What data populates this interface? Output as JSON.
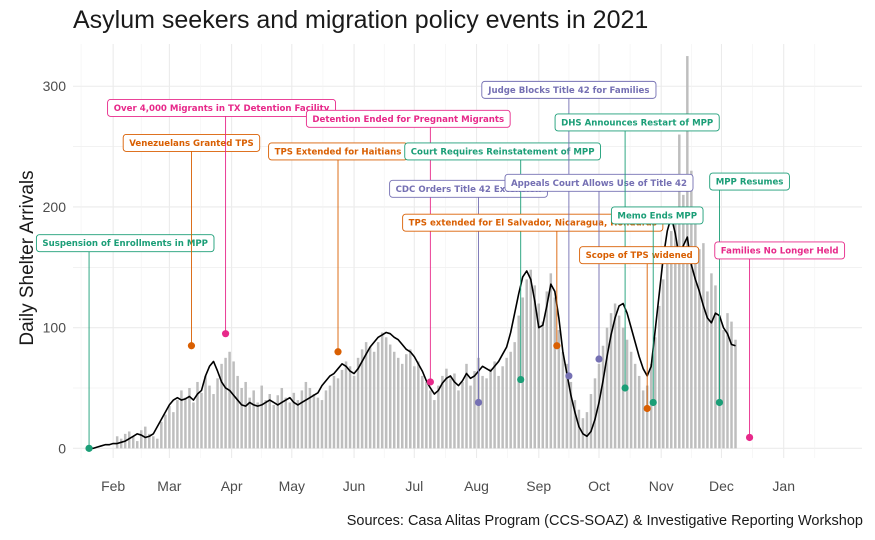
{
  "chart_data": {
    "type": "bar+line",
    "title": "Asylum seekers and migration policy events in 2021",
    "ylabel": "Daily Shelter Arrivals",
    "xlabel": "",
    "ylim": [
      -8,
      335
    ],
    "xlim": [
      "2021-01-12",
      "2022-02-09"
    ],
    "y_ticks": [
      0,
      100,
      200,
      300
    ],
    "x_ticks": [
      {
        "date": "2021-02-01",
        "label": "Feb"
      },
      {
        "date": "2021-03-01",
        "label": "Mar"
      },
      {
        "date": "2021-04-01",
        "label": "Apr"
      },
      {
        "date": "2021-05-01",
        "label": "May"
      },
      {
        "date": "2021-06-01",
        "label": "Jun"
      },
      {
        "date": "2021-07-01",
        "label": "Jul"
      },
      {
        "date": "2021-08-01",
        "label": "Aug"
      },
      {
        "date": "2021-09-01",
        "label": "Sep"
      },
      {
        "date": "2021-10-01",
        "label": "Oct"
      },
      {
        "date": "2021-11-01",
        "label": "Nov"
      },
      {
        "date": "2021-12-01",
        "label": "Dec"
      },
      {
        "date": "2022-01-01",
        "label": "Jan"
      }
    ],
    "grid": true,
    "bar_color": "#bebebe",
    "line_color": "#000000",
    "daily_arrivals_bars": {
      "start_date": "2021-01-20",
      "step_days": 2,
      "values": [
        0,
        0,
        0,
        0,
        0,
        0,
        0,
        10,
        8,
        12,
        14,
        10,
        6,
        15,
        18,
        12,
        10,
        8,
        22,
        28,
        35,
        30,
        40,
        48,
        42,
        50,
        38,
        55,
        46,
        60,
        52,
        45,
        58,
        70,
        75,
        80,
        72,
        60,
        50,
        55,
        42,
        48,
        38,
        52,
        40,
        45,
        36,
        44,
        50,
        42,
        38,
        46,
        40,
        48,
        55,
        50,
        45,
        42,
        40,
        48,
        52,
        60,
        58,
        65,
        72,
        68,
        60,
        75,
        82,
        88,
        84,
        80,
        88,
        96,
        92,
        86,
        80,
        75,
        70,
        78,
        82,
        68,
        72,
        60,
        55,
        48,
        40,
        52,
        60,
        66,
        58,
        62,
        48,
        55,
        70,
        52,
        64,
        75,
        60,
        58,
        66,
        72,
        60,
        68,
        75,
        80,
        88,
        110,
        125,
        140,
        148,
        135,
        120,
        105,
        130,
        145,
        125,
        98,
        80,
        70,
        55,
        40,
        32,
        25,
        30,
        45,
        58,
        70,
        85,
        100,
        112,
        120,
        110,
        100,
        90,
        80,
        70,
        60,
        48,
        52,
        70,
        92,
        118,
        140,
        160,
        180,
        195,
        260,
        210,
        325,
        230,
        190,
        165,
        170,
        130,
        145,
        135,
        110,
        98,
        112,
        105,
        90
      ]
    },
    "daily_arrivals_line": {
      "start_date": "2021-01-20",
      "step_days": 2,
      "values": [
        0,
        0,
        1,
        2,
        3,
        3,
        4,
        4,
        5,
        6,
        8,
        10,
        12,
        11,
        9,
        10,
        12,
        18,
        24,
        30,
        36,
        40,
        42,
        40,
        41,
        43,
        40,
        45,
        48,
        60,
        68,
        72,
        64,
        55,
        50,
        48,
        44,
        40,
        36,
        35,
        38,
        36,
        35,
        36,
        38,
        40,
        38,
        36,
        38,
        40,
        42,
        38,
        36,
        38,
        40,
        42,
        44,
        46,
        52,
        56,
        60,
        62,
        66,
        70,
        68,
        64,
        62,
        66,
        72,
        78,
        84,
        88,
        92,
        94,
        96,
        95,
        92,
        90,
        86,
        82,
        80,
        76,
        70,
        64,
        56,
        50,
        45,
        48,
        54,
        58,
        60,
        55,
        52,
        56,
        62,
        58,
        60,
        64,
        68,
        66,
        64,
        68,
        72,
        78,
        84,
        96,
        112,
        128,
        142,
        147,
        140,
        122,
        100,
        102,
        118,
        136,
        130,
        108,
        80,
        62,
        44,
        30,
        18,
        12,
        10,
        14,
        24,
        38,
        56,
        76,
        94,
        108,
        118,
        120,
        112,
        100,
        88,
        76,
        66,
        60,
        68,
        98,
        128,
        158,
        180,
        192,
        178,
        158,
        168,
        175,
        152,
        140,
        130,
        118,
        108,
        104,
        112,
        110,
        100,
        95,
        86,
        85
      ]
    },
    "events": [
      {
        "date": "2021-01-20",
        "y": 0,
        "label": "Suspension of Enrollments in MPP",
        "color": "#1b9e77",
        "label_date": "2021-02-07",
        "label_y": 170
      },
      {
        "date": "2021-03-12",
        "y": 85,
        "label": "Venezuelans Granted TPS",
        "color": "#d95f02",
        "label_date": "2021-03-12",
        "label_y": 253
      },
      {
        "date": "2021-03-29",
        "y": 95,
        "label": "Over 4,000 Migrants in TX Detention Facility",
        "color": "#e7298a",
        "label_date": "2021-03-27",
        "label_y": 282
      },
      {
        "date": "2021-05-24",
        "y": 80,
        "label": "TPS Extended for Haitians",
        "color": "#d95f02",
        "label_date": "2021-05-24",
        "label_y": 246
      },
      {
        "date": "2021-07-09",
        "y": 55,
        "label": "Detention Ended for Pregnant Migrants",
        "color": "#e7298a",
        "label_date": "2021-06-28",
        "label_y": 273
      },
      {
        "date": "2021-08-02",
        "y": 38,
        "label": "CDC Orders Title 42 Extension",
        "color": "#7570b3",
        "label_date": "2021-07-28",
        "label_y": 215
      },
      {
        "date": "2021-08-23",
        "y": 57,
        "label": "Court Requires Reinstatement of MPP",
        "color": "#1b9e77",
        "label_date": "2021-08-14",
        "label_y": 246
      },
      {
        "date": "2021-09-10",
        "y": 85,
        "label": "TPS extended for El Salvador, Nicaragua, Honduras",
        "color": "#d95f02",
        "label_date": "2021-08-29",
        "label_y": 187
      },
      {
        "date": "2021-09-16",
        "y": 60,
        "label": "Judge Blocks Title 42 for Families",
        "color": "#7570b3",
        "label_date": "2021-09-16",
        "label_y": 297
      },
      {
        "date": "2021-10-01",
        "y": 74,
        "label": "Appeals Court Allows Use of Title 42",
        "color": "#7570b3",
        "label_date": "2021-10-01",
        "label_y": 220
      },
      {
        "date": "2021-10-14",
        "y": 50,
        "label": "DHS Announces Restart of MPP",
        "color": "#1b9e77",
        "label_date": "2021-10-20",
        "label_y": 270
      },
      {
        "date": "2021-10-25",
        "y": 33,
        "label": "Scope of TPS widened",
        "color": "#d95f02",
        "label_date": "2021-10-21",
        "label_y": 160
      },
      {
        "date": "2021-10-28",
        "y": 38,
        "label": "Memo Ends MPP",
        "color": "#1b9e77",
        "label_date": "2021-10-30",
        "label_y": 193
      },
      {
        "date": "2021-11-30",
        "y": 38,
        "label": "MPP Resumes",
        "color": "#1b9e77",
        "label_date": "2021-12-15",
        "label_y": 221
      },
      {
        "date": "2021-12-15",
        "y": 9,
        "label": "Families No Longer Held",
        "color": "#e7298a",
        "label_date": "2021-12-30",
        "label_y": 164
      }
    ]
  },
  "source": "Sources: Casa Alitas Program (CCS-SOAZ) & Investigative Reporting Workshop"
}
